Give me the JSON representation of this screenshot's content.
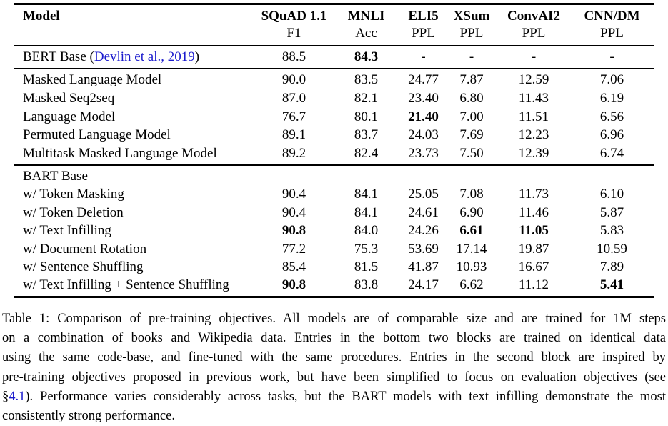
{
  "link_color": "#1b1bcd",
  "table": {
    "header": {
      "model_label": "Model",
      "columns": [
        {
          "name": "SQuAD 1.1",
          "metric": "F1"
        },
        {
          "name": "MNLI",
          "metric": "Acc"
        },
        {
          "name": "ELI5",
          "metric": "PPL"
        },
        {
          "name": "XSum",
          "metric": "PPL"
        },
        {
          "name": "ConvAI2",
          "metric": "PPL"
        },
        {
          "name": "CNN/DM",
          "metric": "PPL"
        }
      ]
    },
    "groups": [
      {
        "rows": [
          {
            "model_runs": [
              [
                "BERT Base (",
                0
              ],
              [
                "Devlin et al., 2019",
                1
              ],
              [
                ")",
                0
              ]
            ],
            "values": [
              "88.5",
              "84.3",
              "-",
              "-",
              "-",
              "-"
            ],
            "bold": [
              1
            ]
          }
        ]
      },
      {
        "rows": [
          {
            "model": "Masked Language Model",
            "values": [
              "90.0",
              "83.5",
              "24.77",
              "7.87",
              "12.59",
              "7.06"
            ],
            "bold": []
          },
          {
            "model": "Masked Seq2seq",
            "values": [
              "87.0",
              "82.1",
              "23.40",
              "6.80",
              "11.43",
              "6.19"
            ],
            "bold": []
          },
          {
            "model": "Language Model",
            "values": [
              "76.7",
              "80.1",
              "21.40",
              "7.00",
              "11.51",
              "6.56"
            ],
            "bold": [
              2
            ]
          },
          {
            "model": "Permuted Language Model",
            "values": [
              "89.1",
              "83.7",
              "24.03",
              "7.69",
              "12.23",
              "6.96"
            ],
            "bold": []
          },
          {
            "model": "Multitask Masked Language Model",
            "values": [
              "89.2",
              "82.4",
              "23.73",
              "7.50",
              "12.39",
              "6.74"
            ],
            "bold": []
          }
        ]
      },
      {
        "rows": [
          {
            "model": "BART Base",
            "values": [
              "",
              "",
              "",
              "",
              "",
              ""
            ],
            "bold": []
          },
          {
            "model": "w/ Token Masking",
            "values": [
              "90.4",
              "84.1",
              "25.05",
              "7.08",
              "11.73",
              "6.10"
            ],
            "bold": []
          },
          {
            "model": "w/ Token Deletion",
            "values": [
              "90.4",
              "84.1",
              "24.61",
              "6.90",
              "11.46",
              "5.87"
            ],
            "bold": []
          },
          {
            "model": "w/ Text Infilling",
            "values": [
              "90.8",
              "84.0",
              "24.26",
              "6.61",
              "11.05",
              "5.83"
            ],
            "bold": [
              0,
              3,
              4
            ]
          },
          {
            "model": "w/ Document Rotation",
            "values": [
              "77.2",
              "75.3",
              "53.69",
              "17.14",
              "19.87",
              "10.59"
            ],
            "bold": []
          },
          {
            "model": "w/ Sentence Shuffling",
            "values": [
              "85.4",
              "81.5",
              "41.87",
              "10.93",
              "16.67",
              "7.89"
            ],
            "bold": []
          },
          {
            "model": "w/ Text Infilling + Sentence Shuffling",
            "values": [
              "90.8",
              "83.8",
              "24.17",
              "6.62",
              "11.12",
              "5.41"
            ],
            "bold": [
              0,
              5
            ]
          }
        ]
      }
    ]
  },
  "caption": {
    "lines": [
      [
        {
          "t": "Table 1: Comparison of pre-training objectives. All models are of comparable size and are trained for 1M steps"
        }
      ],
      [
        {
          "t": "on a combination of books and Wikipedia data. Entries in the bottom two blocks are trained on identical data"
        }
      ],
      [
        {
          "t": "using the same code-base, and fine-tuned with the same procedures. Entries in the second block are inspired by"
        }
      ],
      [
        {
          "t": "pre-training objectives proposed in previous work, but have been simplified to focus on evaluation objectives (see"
        }
      ],
      [
        {
          "t": "§"
        },
        {
          "t": "4.1",
          "link": true
        },
        {
          "t": "). Performance varies considerably across tasks, but the BART models with text infilling demonstrate the most"
        }
      ],
      [
        {
          "t": "consistently strong performance.",
          "lastline": true
        }
      ]
    ]
  }
}
